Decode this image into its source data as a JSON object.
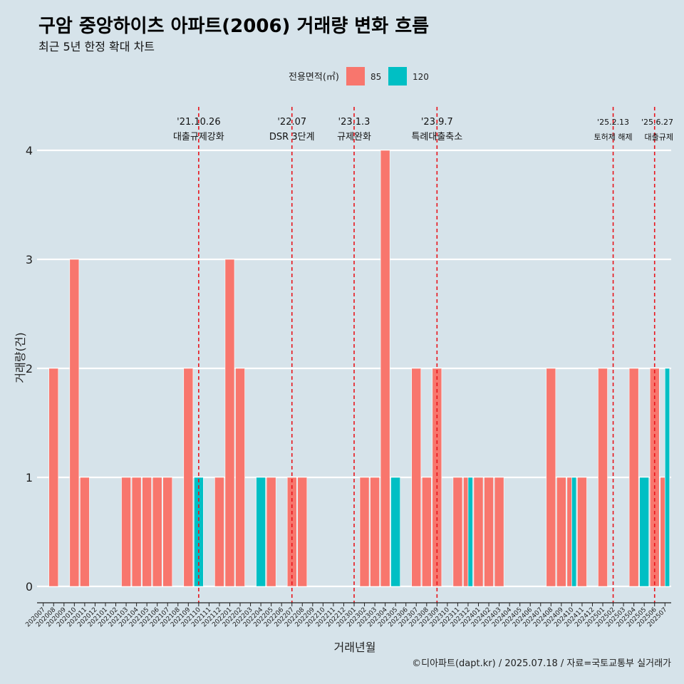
{
  "chart_data": {
    "type": "bar",
    "title": "구암 중앙하이츠 아파트(2006) 거래량 변화 흐름",
    "subtitle": "최근 5년 한정 확대 차트",
    "xlabel": "거래년월",
    "ylabel": "거래량(건)",
    "ylim": [
      0,
      4
    ],
    "yticks": [
      0,
      1,
      2,
      3,
      4
    ],
    "legend_title": "전용면적(㎡)",
    "legend_position": "top",
    "caption": "©디아파트(dapt.kr) / 2025.07.18 / 자료=국토교통부 실거래가",
    "colors": {
      "background": "#d6e3ea",
      "s85": "#f8766d",
      "s120": "#00bfc4",
      "event_line": "#e8141b",
      "grid": "#ffffff"
    },
    "categories": [
      "202007",
      "202008",
      "202009",
      "202010",
      "202011",
      "202012",
      "202101",
      "202102",
      "202103",
      "202104",
      "202105",
      "202106",
      "202107",
      "202108",
      "202109",
      "202110",
      "202111",
      "202112",
      "202201",
      "202202",
      "202203",
      "202204",
      "202205",
      "202206",
      "202207",
      "202208",
      "202209",
      "202210",
      "202211",
      "202212",
      "202301",
      "202302",
      "202303",
      "202304",
      "202305",
      "202306",
      "202307",
      "202308",
      "202309",
      "202310",
      "202311",
      "202312",
      "202401",
      "202402",
      "202403",
      "202404",
      "202405",
      "202406",
      "202407",
      "202408",
      "202409",
      "202410",
      "202411",
      "202412",
      "202501",
      "202502",
      "202503",
      "202504",
      "202505",
      "202506",
      "202507"
    ],
    "series": [
      {
        "name": "85",
        "values": [
          0,
          2,
          0,
          3,
          1,
          0,
          0,
          0,
          1,
          1,
          1,
          1,
          1,
          0,
          2,
          0,
          0,
          1,
          3,
          2,
          0,
          0,
          1,
          0,
          1,
          1,
          0,
          0,
          0,
          0,
          0,
          1,
          1,
          4,
          0,
          0,
          2,
          1,
          2,
          0,
          1,
          1,
          1,
          1,
          1,
          0,
          0,
          0,
          0,
          2,
          1,
          1,
          1,
          0,
          2,
          0,
          0,
          2,
          0,
          2,
          1
        ]
      },
      {
        "name": "120",
        "values": [
          0,
          0,
          0,
          0,
          0,
          0,
          0,
          0,
          0,
          0,
          0,
          0,
          0,
          0,
          0,
          1,
          0,
          0,
          0,
          0,
          0,
          1,
          0,
          0,
          0,
          0,
          0,
          0,
          0,
          0,
          0,
          0,
          0,
          0,
          1,
          0,
          0,
          0,
          0,
          0,
          0,
          1,
          0,
          0,
          0,
          0,
          0,
          0,
          0,
          0,
          0,
          1,
          0,
          0,
          0,
          0,
          0,
          0,
          1,
          0,
          2
        ]
      }
    ],
    "events": [
      {
        "date": "'21.10.26",
        "label": "대출규제강화",
        "x": "202110"
      },
      {
        "date": "'22.07",
        "label": "DSR 3단계",
        "x": "202207"
      },
      {
        "date": "'23.1.3",
        "label": "규제완화",
        "x": "202301"
      },
      {
        "date": "'23.9.7",
        "label": "특례대출축소",
        "x": "202309"
      },
      {
        "date": "'25.2.13",
        "label": "토허제 해제",
        "x": "202502"
      },
      {
        "date": "'25.6.27",
        "label": "대출규제",
        "x": "202506"
      }
    ]
  }
}
